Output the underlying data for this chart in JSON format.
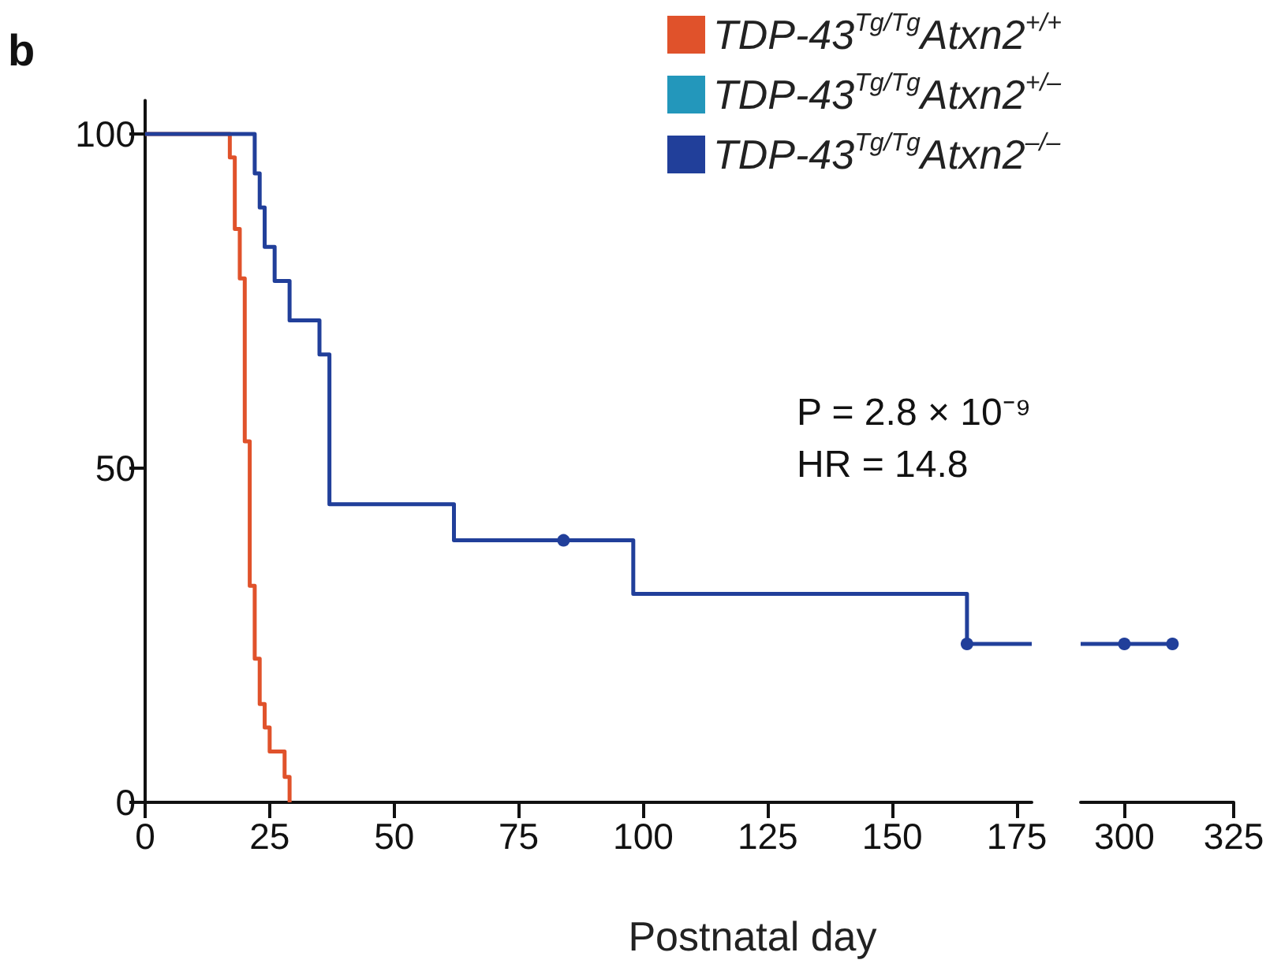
{
  "chart_data": [
    {
      "type": "step",
      "xlabel": "Postnatal day",
      "xlim": [
        0,
        178
      ],
      "xticks": [
        0,
        25,
        50,
        75,
        100,
        125,
        150,
        175
      ],
      "ylim": [
        0,
        105
      ],
      "yticks": [
        0,
        50,
        100
      ],
      "legend": "top right",
      "grid": false,
      "annotations": [
        "b",
        "P = 2.8 × 10⁻⁹",
        "HR = 14.8"
      ],
      "series": [
        {
          "name": "TDP-43$^{Tg/Tg}$Atxn2$^{+/+}$",
          "color": "#e0522b",
          "x": [
            0,
            17,
            18,
            19,
            20,
            21,
            22,
            23,
            24,
            25,
            28,
            29
          ],
          "values": [
            100,
            96.5,
            85.8,
            78.4,
            54,
            32.4,
            21.5,
            14.7,
            11.2,
            7.6,
            3.8,
            0
          ]
        },
        {
          "name": "TDP-43$^{Tg/Tg}$Atxn2$^{+/–}$",
          "color": "#2397bb"
        },
        {
          "name": "TDP-43$^{Tg/Tg}$Atxn2$^{–/–}$",
          "color": "#213f9a",
          "x": [
            0,
            22,
            23,
            24,
            26,
            29,
            35,
            37,
            62,
            98,
            165,
            178
          ],
          "values": [
            100,
            94.1,
            89,
            83.1,
            78,
            72.1,
            67,
            44.6,
            39.2,
            31.2,
            23.7,
            23.7
          ]
        },
        {
          "type": "scatter",
          "marker": "circle",
          "color": "#213f9a",
          "x": [
            84,
            165
          ],
          "values": [
            39.2,
            23.7
          ]
        }
      ]
    },
    {
      "type": "step",
      "xlim": [
        290,
        325
      ],
      "xticks": [
        300,
        325
      ],
      "ylim": [
        0,
        100
      ],
      "yticks": [
        0,
        50,
        100
      ],
      "tick_labels": "x",
      "grid": false,
      "series": [
        {
          "color": "#213f9a",
          "x": [
            290,
            311
          ],
          "values": [
            23.7,
            23.7
          ]
        },
        {
          "type": "scatter",
          "marker": "circle",
          "color": "#213f9a",
          "x": [
            300,
            311
          ],
          "values": [
            23.7,
            23.7
          ]
        }
      ]
    }
  ]
}
